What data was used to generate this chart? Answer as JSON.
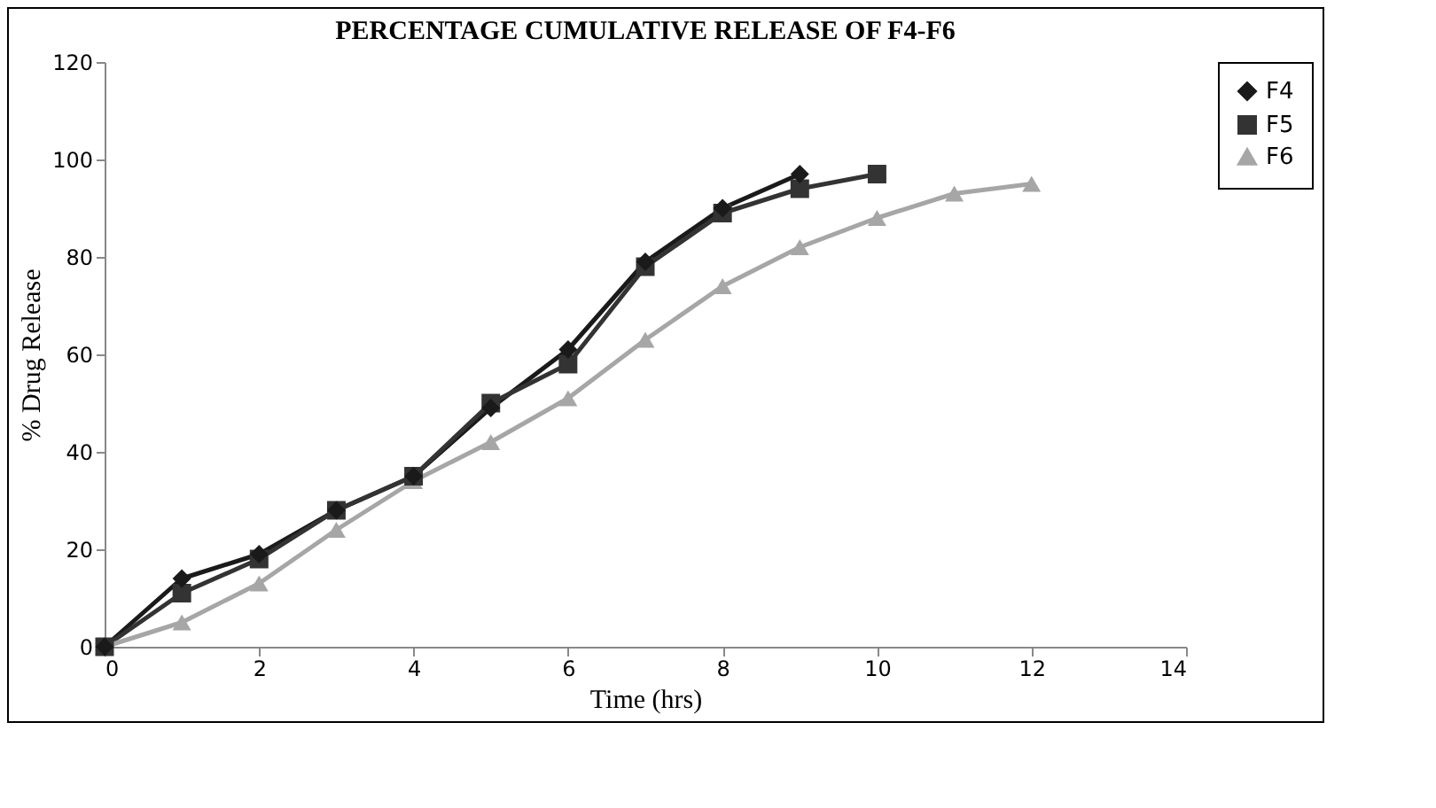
{
  "chart_data": {
    "type": "line",
    "title": "PERCENTAGE CUMULATIVE RELEASE OF F4-F6",
    "xlabel": "Time (hrs)",
    "ylabel": "% Drug Release",
    "x": [
      0,
      1,
      2,
      3,
      4,
      5,
      6,
      7,
      8,
      9,
      10,
      11,
      12
    ],
    "series": [
      {
        "name": "F4",
        "color": "#1a1a1a",
        "marker": "diamond",
        "values": [
          0,
          14,
          19,
          28,
          35,
          49,
          61,
          79,
          90,
          97,
          null,
          null,
          null
        ]
      },
      {
        "name": "F5",
        "color": "#333333",
        "marker": "square",
        "values": [
          0,
          11,
          18,
          28,
          35,
          50,
          58,
          78,
          89,
          94,
          97,
          null,
          null
        ]
      },
      {
        "name": "F6",
        "color": "#a6a6a6",
        "marker": "triangle",
        "values": [
          0,
          5,
          13,
          24,
          34,
          42,
          51,
          63,
          74,
          82,
          88,
          93,
          95
        ]
      }
    ],
    "xlim": [
      0,
      14
    ],
    "xticks": [
      0,
      2,
      4,
      6,
      8,
      10,
      12,
      14
    ],
    "ylim": [
      0,
      120
    ],
    "yticks": [
      0,
      20,
      40,
      60,
      80,
      100,
      120
    ],
    "grid": false,
    "legend": "right",
    "line_style": "solid"
  }
}
